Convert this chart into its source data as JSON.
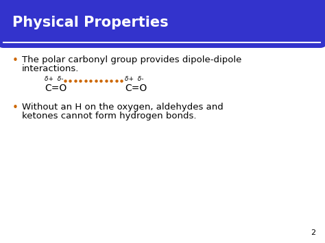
{
  "title": "Physical Properties",
  "title_bg_color": "#3333CC",
  "title_text_color": "#FFFFFF",
  "slide_bg_color": "#FFFFFF",
  "border_color": "#CC6600",
  "bullet1_line1": "The polar carbonyl group provides dipole-dipole",
  "bullet1_line2": "interactions.",
  "delta_label1": "δ+  δ-",
  "ceo_label1": "C=O",
  "delta_label2": "δ+  δ-",
  "ceo_label2": "C=O",
  "bullet2_line1": "Without an H on the oxygen, aldehydes and",
  "bullet2_line2": "ketones cannot form hydrogen bonds.",
  "bullet_color": "#CC6600",
  "text_color": "#000000",
  "dots_color": "#CC6600",
  "page_num": "2",
  "font_size_title": 15,
  "font_size_body": 9.5,
  "font_size_chem": 10,
  "font_size_delta": 6.5
}
